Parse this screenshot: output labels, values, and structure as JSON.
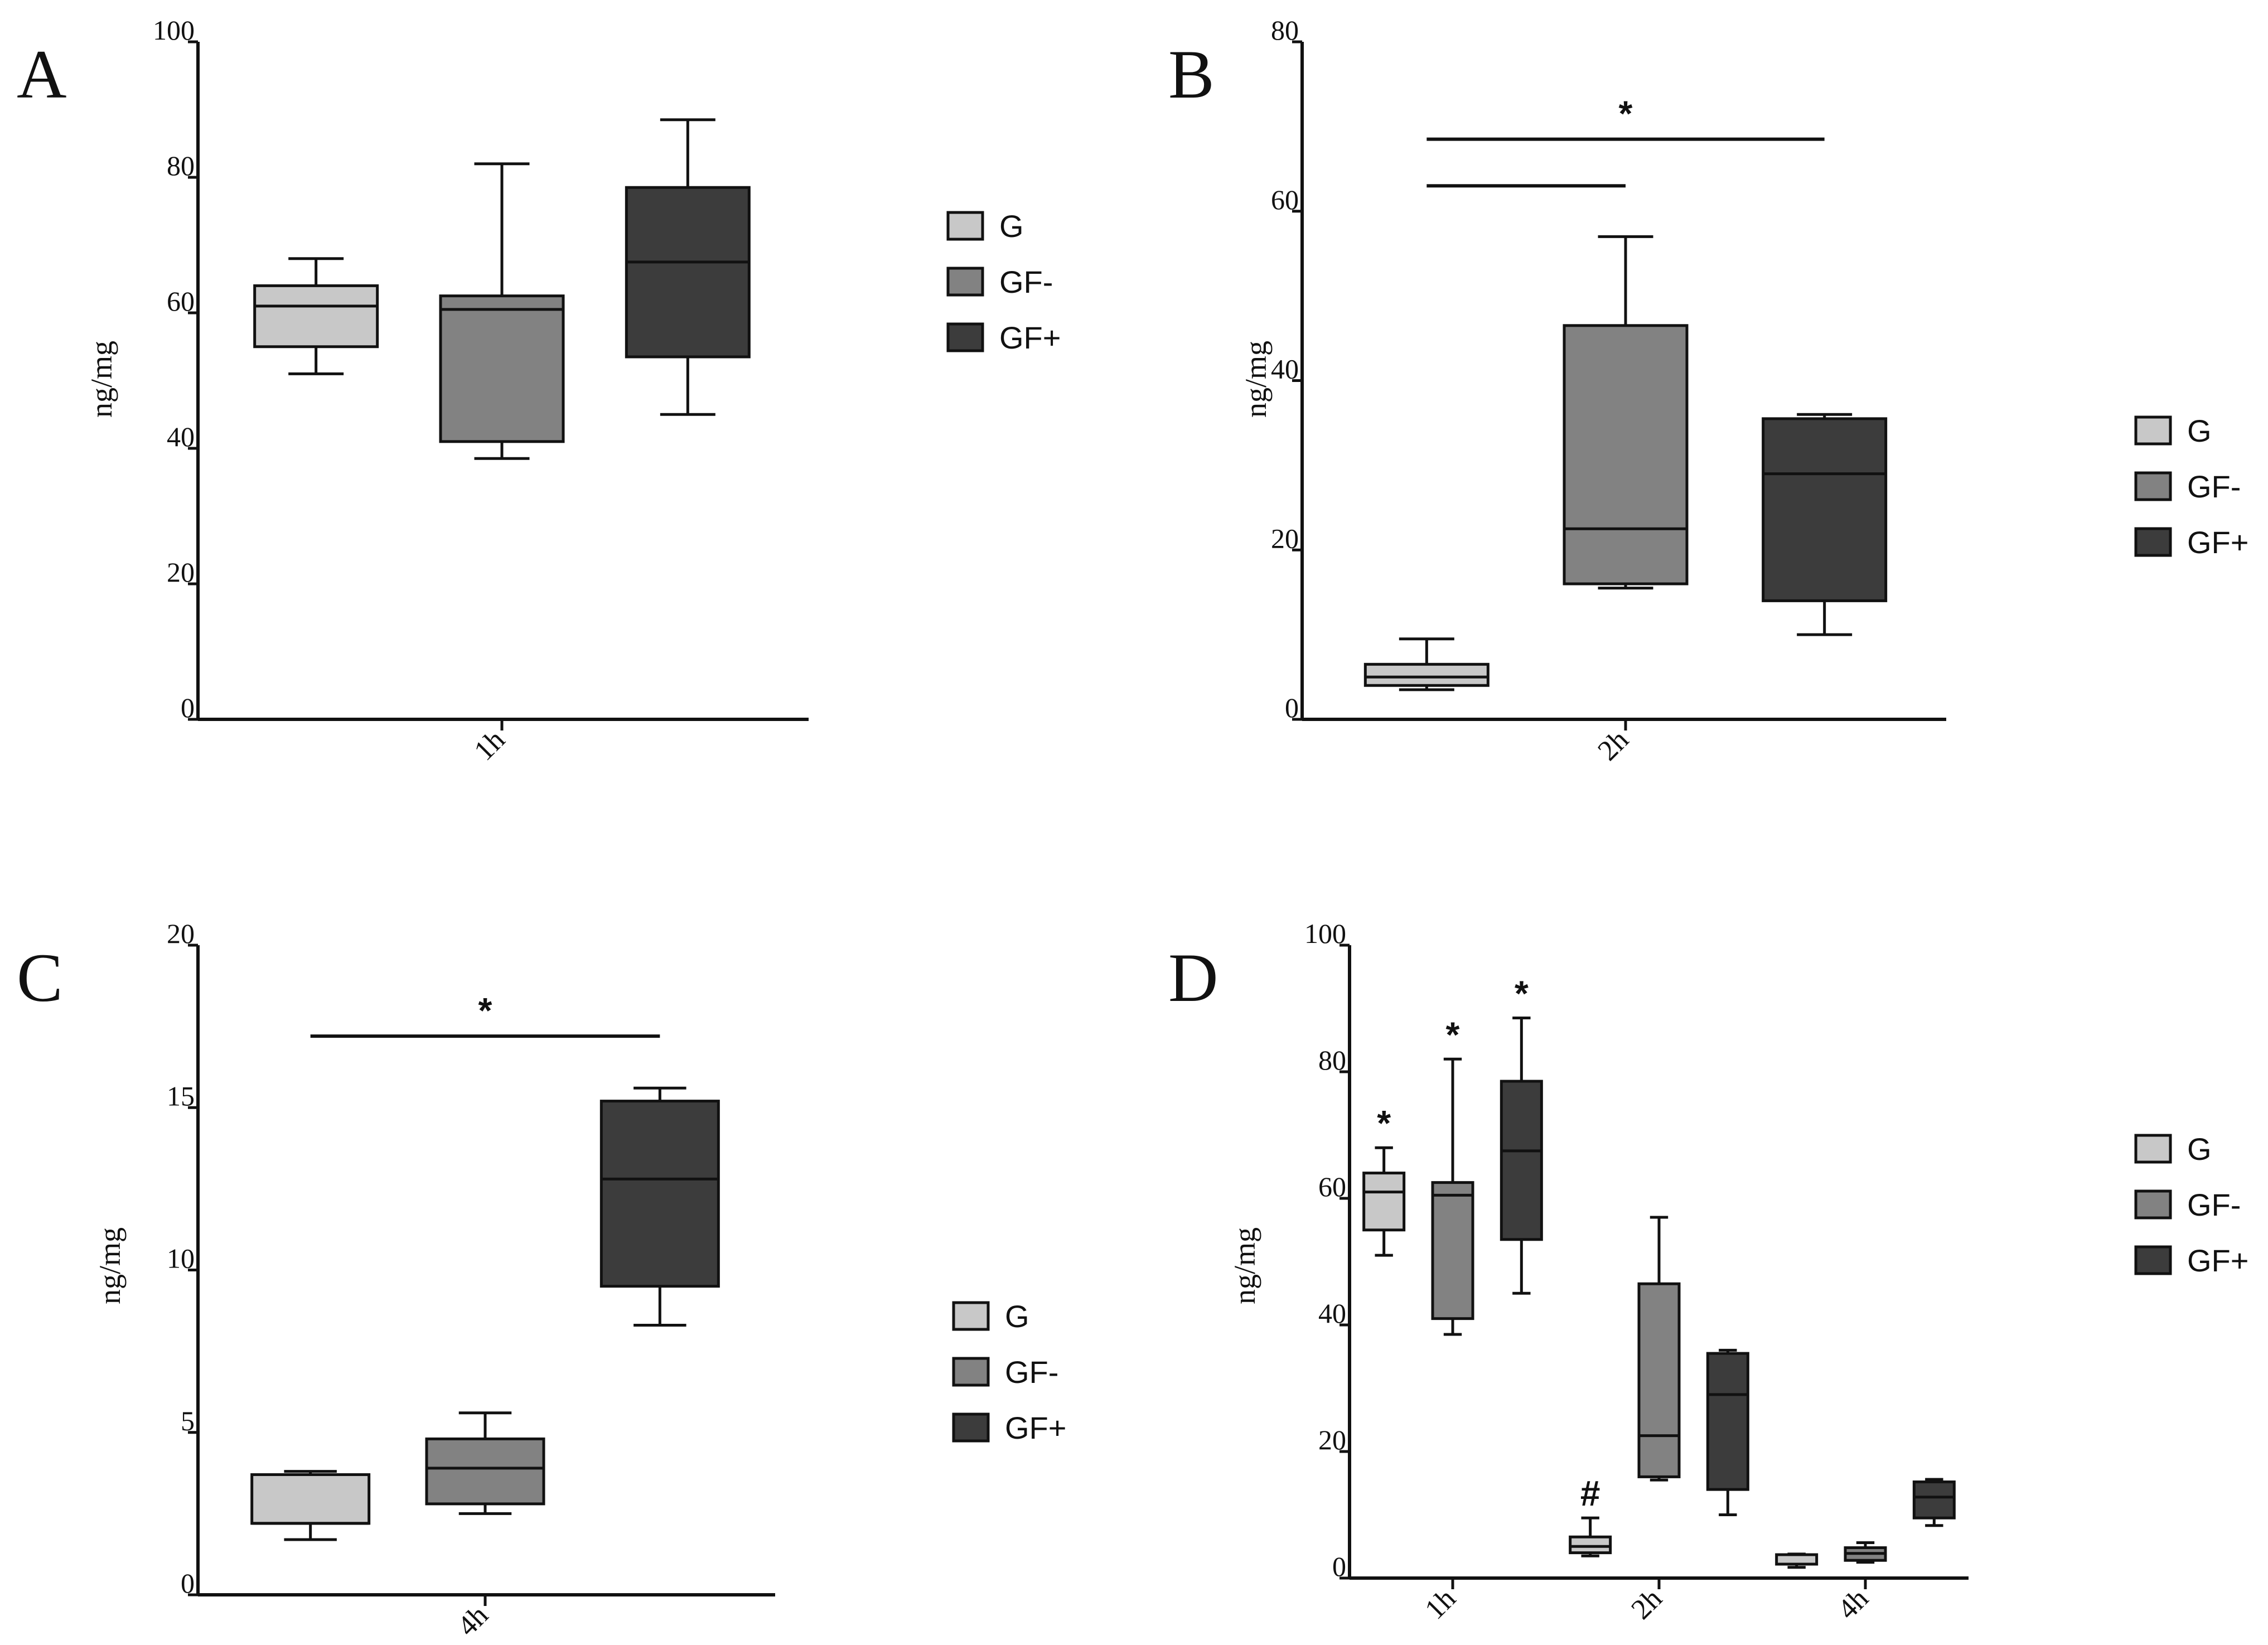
{
  "figure": {
    "panels": [
      "A",
      "B",
      "C",
      "D"
    ]
  },
  "colors": {
    "G": "#c8c8c8",
    "GF-": "#828282",
    "GF+": "#3c3c3c",
    "axis": "#111111"
  },
  "legend": {
    "entries": [
      "G",
      "GF-",
      "GF+"
    ]
  },
  "chart_data": [
    {
      "panel": "A",
      "type": "box",
      "title": "",
      "ylabel": "ng/mg",
      "xlabel": "",
      "ylim": [
        0,
        100
      ],
      "yticks": [
        0,
        20,
        40,
        60,
        80,
        100
      ],
      "categories": [
        "1h"
      ],
      "series": [
        {
          "name": "G",
          "category": "1h",
          "min": 51,
          "q1": 55,
          "median": 61,
          "q3": 64,
          "max": 68
        },
        {
          "name": "GF-",
          "category": "1h",
          "min": 38.5,
          "q1": 41,
          "median": 60.5,
          "q3": 62.5,
          "max": 82
        },
        {
          "name": "GF+",
          "category": "1h",
          "min": 45,
          "q1": 53.5,
          "median": 67.5,
          "q3": 78.5,
          "max": 88.5
        }
      ],
      "significance": [],
      "legend_position": "right"
    },
    {
      "panel": "B",
      "type": "box",
      "title": "",
      "ylabel": "ng/mg",
      "xlabel": "",
      "ylim": [
        0,
        80
      ],
      "yticks": [
        0,
        20,
        40,
        60,
        80
      ],
      "categories": [
        "2h"
      ],
      "series": [
        {
          "name": "G",
          "category": "2h",
          "min": 3.5,
          "q1": 4,
          "median": 5,
          "q3": 6.5,
          "max": 9.5
        },
        {
          "name": "GF-",
          "category": "2h",
          "min": 15.5,
          "q1": 16,
          "median": 22.5,
          "q3": 46.5,
          "max": 57
        },
        {
          "name": "GF+",
          "category": "2h",
          "min": 10,
          "q1": 14,
          "median": 29,
          "q3": 35.5,
          "max": 36
        }
      ],
      "significance": [
        {
          "from": "G",
          "to": "GF+",
          "label": "*",
          "y": 68.5
        },
        {
          "from": "G",
          "to": "GF-",
          "label": "",
          "y": 63
        }
      ],
      "legend_position": "right"
    },
    {
      "panel": "C",
      "type": "box",
      "title": "",
      "ylabel": "ng/mg",
      "xlabel": "",
      "ylim": [
        0,
        20
      ],
      "yticks": [
        0,
        5,
        10,
        15,
        20
      ],
      "categories": [
        "4h"
      ],
      "series": [
        {
          "name": "G",
          "category": "4h",
          "min": 1.7,
          "q1": 2.2,
          "median": 2.2,
          "q3": 3.7,
          "max": 3.8
        },
        {
          "name": "GF-",
          "category": "4h",
          "min": 2.5,
          "q1": 2.8,
          "median": 3.9,
          "q3": 4.8,
          "max": 5.6
        },
        {
          "name": "GF+",
          "category": "4h",
          "min": 8.3,
          "q1": 9.5,
          "median": 12.8,
          "q3": 15.2,
          "max": 15.6
        }
      ],
      "significance": [
        {
          "from": "G",
          "to": "GF+",
          "label": "*",
          "y": 17.2
        }
      ],
      "legend_position": "right"
    },
    {
      "panel": "D",
      "type": "box",
      "title": "",
      "ylabel": "ng/mg",
      "xlabel": "",
      "ylim": [
        0,
        100
      ],
      "yticks": [
        0,
        20,
        40,
        60,
        80,
        100
      ],
      "categories": [
        "1h",
        "2h",
        "4h"
      ],
      "series": [
        {
          "name": "G",
          "category": "1h",
          "min": 51,
          "q1": 55,
          "median": 61,
          "q3": 64,
          "max": 68,
          "mark": "*"
        },
        {
          "name": "GF-",
          "category": "1h",
          "min": 38.5,
          "q1": 41,
          "median": 60.5,
          "q3": 62.5,
          "max": 82,
          "mark": "*"
        },
        {
          "name": "GF+",
          "category": "1h",
          "min": 45,
          "q1": 53.5,
          "median": 67.5,
          "q3": 78.5,
          "max": 88.5,
          "mark": "*"
        },
        {
          "name": "G",
          "category": "2h",
          "min": 3.5,
          "q1": 4,
          "median": 5,
          "q3": 6.5,
          "max": 9.5,
          "mark": "#"
        },
        {
          "name": "GF-",
          "category": "2h",
          "min": 15.5,
          "q1": 16,
          "median": 22.5,
          "q3": 46.5,
          "max": 57,
          "mark": ""
        },
        {
          "name": "GF+",
          "category": "2h",
          "min": 10,
          "q1": 14,
          "median": 29,
          "q3": 35.5,
          "max": 36,
          "mark": ""
        },
        {
          "name": "G",
          "category": "4h",
          "min": 1.7,
          "q1": 2.2,
          "median": 2.2,
          "q3": 3.7,
          "max": 3.8,
          "mark": ""
        },
        {
          "name": "GF-",
          "category": "4h",
          "min": 2.5,
          "q1": 2.8,
          "median": 3.9,
          "q3": 4.8,
          "max": 5.6,
          "mark": ""
        },
        {
          "name": "GF+",
          "category": "4h",
          "min": 8.3,
          "q1": 9.5,
          "median": 12.8,
          "q3": 15.2,
          "max": 15.6,
          "mark": ""
        }
      ],
      "significance": [],
      "legend_position": "right"
    }
  ]
}
